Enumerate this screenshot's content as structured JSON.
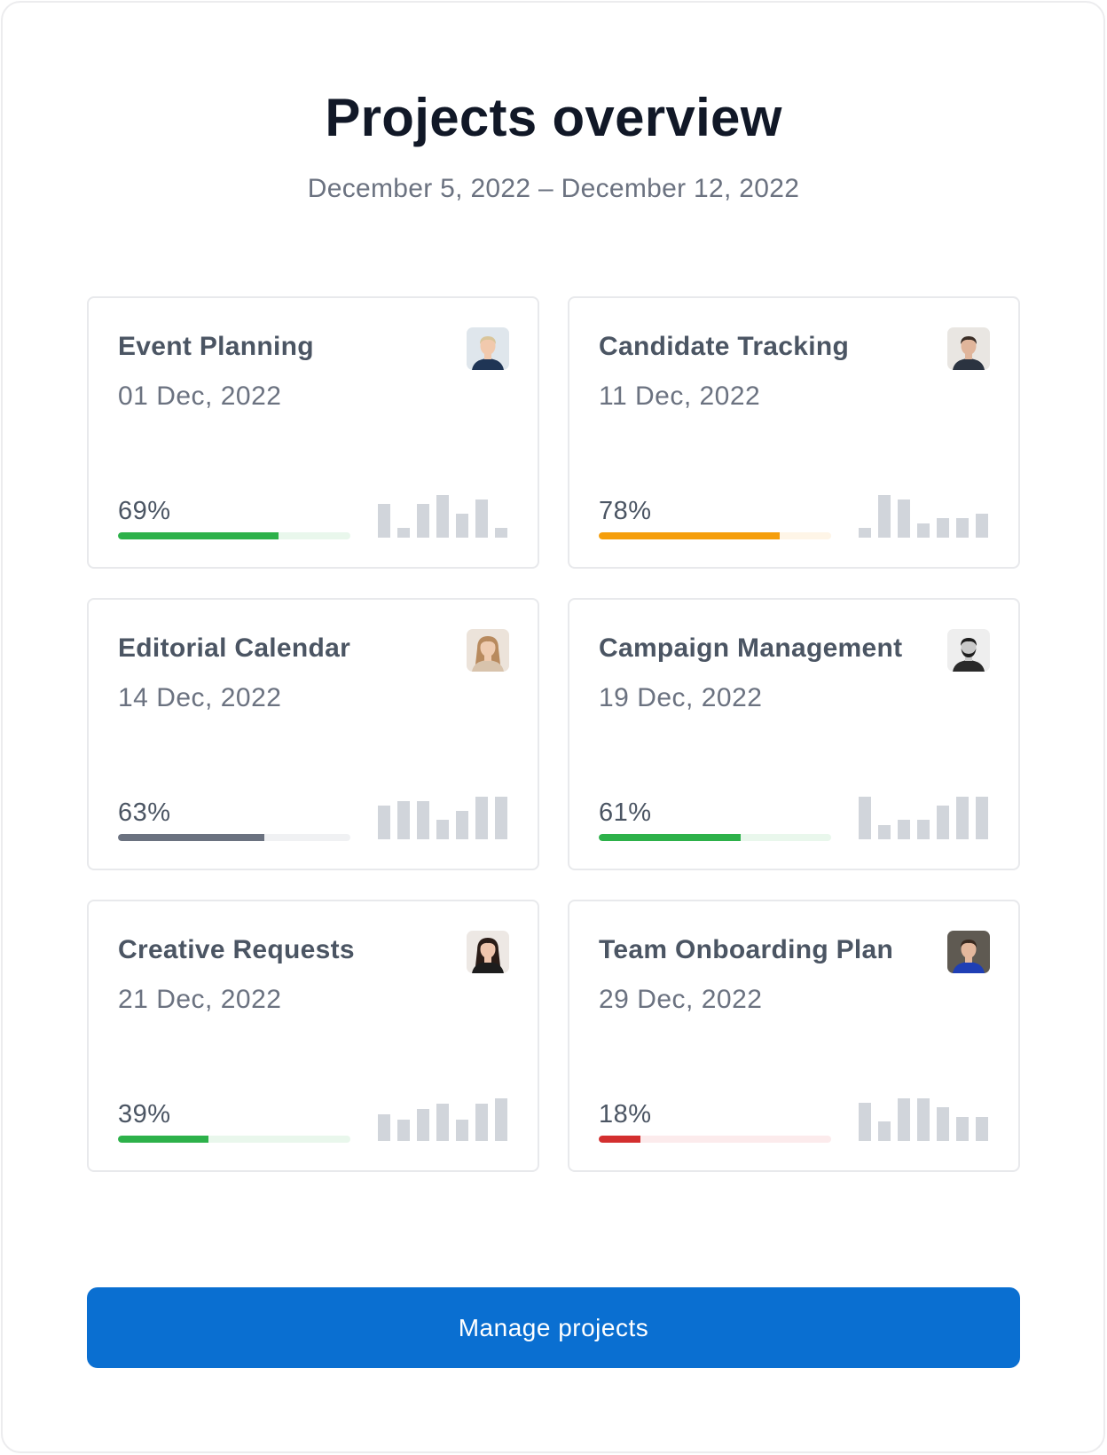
{
  "header": {
    "title": "Projects overview",
    "date_range": "December 5, 2022 – December 12, 2022"
  },
  "projects": [
    {
      "name": "Event Planning",
      "date": "01 Dec, 2022",
      "progress_label": "69%",
      "progress": 69,
      "color": "#2db14a",
      "track_color": "#e9f7ec",
      "avatar": "avatar-woman-blonde",
      "activity": [
        0.79,
        0.22,
        0.79,
        1.0,
        0.56,
        0.9,
        0.22
      ]
    },
    {
      "name": "Candidate Tracking",
      "date": "11 Dec, 2022",
      "progress_label": "78%",
      "progress": 78,
      "color": "#f59e0b",
      "track_color": "#fef5e7",
      "avatar": "avatar-man-short-hair",
      "activity": [
        0.22,
        1.0,
        0.9,
        0.33,
        0.45,
        0.45,
        0.56
      ]
    },
    {
      "name": "Editorial Calendar",
      "date": "14 Dec, 2022",
      "progress_label": "63%",
      "progress": 63,
      "color": "#6b7280",
      "track_color": "#f0f1f3",
      "avatar": "avatar-woman-long-hair",
      "activity": [
        0.79,
        0.9,
        0.9,
        0.45,
        0.66,
        1.0,
        1.0
      ]
    },
    {
      "name": "Campaign Management",
      "date": "19 Dec, 2022",
      "progress_label": "61%",
      "progress": 61,
      "color": "#2db14a",
      "track_color": "#e9f7ec",
      "avatar": "avatar-man-beard",
      "activity": [
        1.0,
        0.33,
        0.45,
        0.45,
        0.79,
        1.0,
        1.0
      ]
    },
    {
      "name": "Creative Requests",
      "date": "21 Dec, 2022",
      "progress_label": "39%",
      "progress": 39,
      "color": "#2db14a",
      "track_color": "#e9f7ec",
      "avatar": "avatar-woman-dark-hair",
      "activity": [
        0.62,
        0.5,
        0.75,
        0.87,
        0.5,
        0.87,
        1.0
      ]
    },
    {
      "name": "Team Onboarding Plan",
      "date": "29 Dec, 2022",
      "progress_label": "18%",
      "progress": 18,
      "color": "#d32f2f",
      "track_color": "#fcebec",
      "avatar": "avatar-man-blue-shirt",
      "activity": [
        0.9,
        0.45,
        1.0,
        1.0,
        0.79,
        0.56,
        0.56
      ]
    }
  ],
  "actions": {
    "manage_label": "Manage projects",
    "accent": "#0a6fd1"
  }
}
